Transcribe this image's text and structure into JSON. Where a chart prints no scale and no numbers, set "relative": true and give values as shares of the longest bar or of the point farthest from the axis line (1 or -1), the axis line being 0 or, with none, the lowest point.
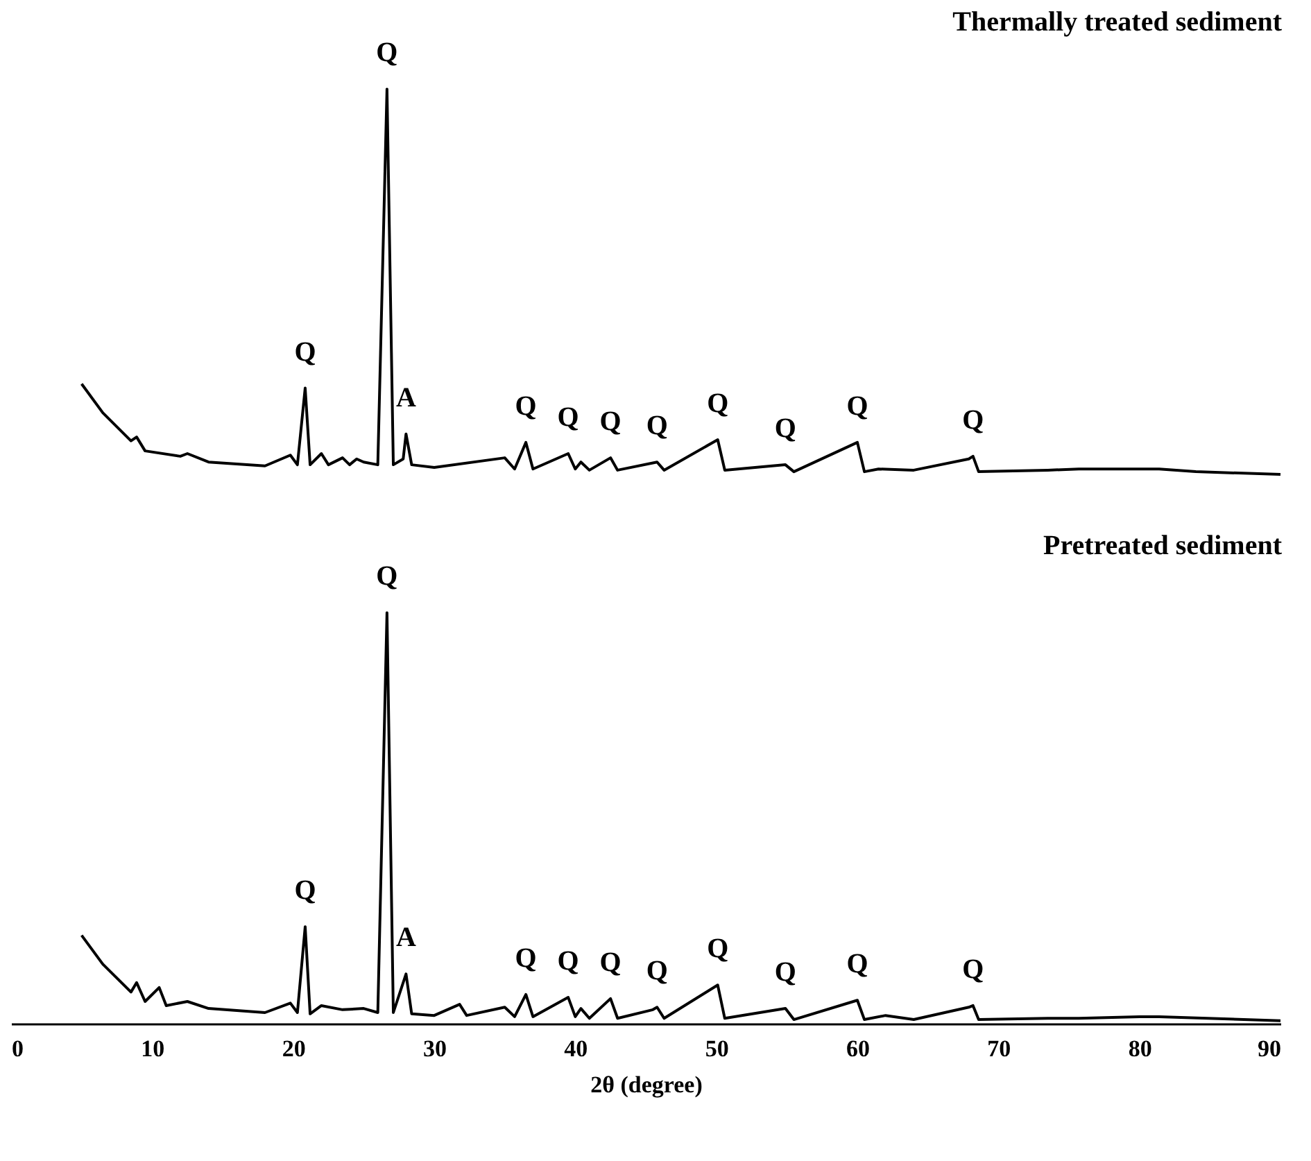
{
  "chart_data": [
    {
      "type": "line",
      "title": "Thermally treated sediment",
      "relative": true,
      "xlim": [
        0,
        90
      ],
      "xticks": [
        0,
        10,
        20,
        30,
        40,
        50,
        60,
        70,
        80,
        90
      ],
      "tick_labels": false,
      "color": "#000000",
      "x": [
        5,
        6.5,
        8.5,
        8.9,
        9.5,
        12,
        12.5,
        14,
        18,
        19.8,
        20.3,
        20.85,
        21.2,
        22,
        22.5,
        23.5,
        24,
        24.5,
        25,
        26,
        26.65,
        27.1,
        27.8,
        28,
        28.4,
        30,
        35,
        35.7,
        36.5,
        37,
        39.5,
        40,
        40.4,
        41,
        42.5,
        43,
        45.8,
        46.3,
        50.1,
        50.6,
        54.9,
        55.5,
        60,
        60.5,
        61.5,
        64,
        67.9,
        68.2,
        68.6,
        73.5,
        75.7,
        79.9,
        81.4,
        84,
        90
      ],
      "values": [
        0.235,
        0.16,
        0.087,
        0.097,
        0.061,
        0.047,
        0.054,
        0.032,
        0.022,
        0.05,
        0.025,
        0.224,
        0.025,
        0.054,
        0.025,
        0.043,
        0.025,
        0.04,
        0.032,
        0.025,
        1.0,
        0.025,
        0.04,
        0.105,
        0.025,
        0.018,
        0.043,
        0.014,
        0.083,
        0.014,
        0.054,
        0.014,
        0.032,
        0.011,
        0.043,
        0.011,
        0.032,
        0.011,
        0.09,
        0.011,
        0.025,
        0.007,
        0.083,
        0.007,
        0.014,
        0.011,
        0.04,
        0.047,
        0.007,
        0.011,
        0.014,
        0.014,
        0.014,
        0.007,
        0
      ],
      "annotations": [
        {
          "text": "Q",
          "x": 20.85,
          "y": 0.224
        },
        {
          "text": "Q",
          "x": 26.65,
          "y": 1.0
        },
        {
          "text": "A",
          "x": 28,
          "y": 0.105
        },
        {
          "text": "Q",
          "x": 36.5,
          "y": 0.083
        },
        {
          "text": "Q",
          "x": 39.5,
          "y": 0.054
        },
        {
          "text": "Q",
          "x": 42.5,
          "y": 0.043
        },
        {
          "text": "Q",
          "x": 45.8,
          "y": 0.032
        },
        {
          "text": "Q",
          "x": 50.1,
          "y": 0.09
        },
        {
          "text": "Q",
          "x": 54.9,
          "y": 0.025
        },
        {
          "text": "Q",
          "x": 60,
          "y": 0.083
        },
        {
          "text": "Q",
          "x": 68.2,
          "y": 0.047
        }
      ]
    },
    {
      "type": "line",
      "title": "Pretreated sediment",
      "relative": true,
      "xlim": [
        0,
        90
      ],
      "xticks": [
        0,
        10,
        20,
        30,
        40,
        50,
        60,
        70,
        80,
        90
      ],
      "xlabel": "2θ (degree)",
      "color": "#000000",
      "x": [
        5,
        6.5,
        8.5,
        8.9,
        9.5,
        10.5,
        11,
        12.5,
        14,
        18,
        19.8,
        20.3,
        20.85,
        21.2,
        22,
        23.5,
        25,
        26,
        26.65,
        27.1,
        28,
        28.4,
        30,
        31.8,
        32.3,
        35,
        35.7,
        36.5,
        37,
        39.5,
        40,
        40.4,
        41,
        42.5,
        43,
        45.5,
        45.8,
        46.3,
        50.1,
        50.6,
        54.9,
        55.5,
        60,
        60.5,
        62,
        64,
        67.9,
        68.2,
        68.6,
        73.5,
        75.7,
        80,
        81.4,
        90
      ],
      "values": [
        0.215,
        0.145,
        0.077,
        0.1,
        0.054,
        0.088,
        0.044,
        0.054,
        0.037,
        0.027,
        0.05,
        0.027,
        0.236,
        0.024,
        0.044,
        0.034,
        0.037,
        0.027,
        1.0,
        0.027,
        0.121,
        0.024,
        0.02,
        0.047,
        0.02,
        0.04,
        0.017,
        0.071,
        0.017,
        0.064,
        0.017,
        0.037,
        0.013,
        0.061,
        0.013,
        0.034,
        0.04,
        0.013,
        0.094,
        0.013,
        0.037,
        0.01,
        0.057,
        0.01,
        0.02,
        0.01,
        0.04,
        0.044,
        0.01,
        0.013,
        0.013,
        0.017,
        0.017,
        0.007
      ],
      "annotations": [
        {
          "text": "Q",
          "x": 20.85,
          "y": 0.236
        },
        {
          "text": "Q",
          "x": 26.65,
          "y": 1.0
        },
        {
          "text": "A",
          "x": 28,
          "y": 0.121
        },
        {
          "text": "Q",
          "x": 36.5,
          "y": 0.071
        },
        {
          "text": "Q",
          "x": 39.5,
          "y": 0.064
        },
        {
          "text": "Q",
          "x": 42.5,
          "y": 0.061
        },
        {
          "text": "Q",
          "x": 45.8,
          "y": 0.04
        },
        {
          "text": "Q",
          "x": 50.1,
          "y": 0.094
        },
        {
          "text": "Q",
          "x": 54.9,
          "y": 0.037
        },
        {
          "text": "Q",
          "x": 60,
          "y": 0.057
        },
        {
          "text": "Q",
          "x": 68.2,
          "y": 0.044
        }
      ]
    }
  ]
}
